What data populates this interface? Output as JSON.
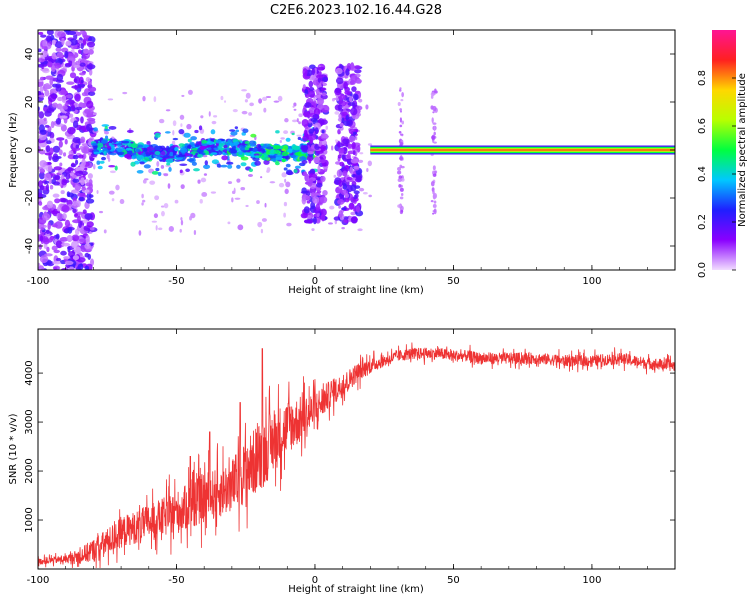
{
  "figure": {
    "title": "C2E6.2023.102.16.44.G28"
  },
  "chart_data": [
    {
      "type": "heatmap",
      "xlabel": "Height of straight line (km)",
      "ylabel": "Frequency (Hz)",
      "xlim": [
        -100,
        130
      ],
      "ylim": [
        -50,
        50
      ],
      "xticks": [
        -100,
        -50,
        0,
        50,
        100
      ],
      "yticks": [
        -40,
        -20,
        0,
        20,
        40
      ],
      "colorbar": {
        "label": "Normalized spectral amplitude",
        "range": [
          0,
          1
        ],
        "ticks": [
          "0.0",
          "0.2",
          "0.4",
          "0.6",
          "0.8"
        ],
        "colors": [
          "#f2ddff",
          "#8a00ff",
          "#1f1fff",
          "#00c8ff",
          "#00ff40",
          "#b8ff00",
          "#ffd700",
          "#ff2020",
          "#ff1493"
        ]
      },
      "features": [
        {
          "name": "noisy broadband band",
          "x_range": [
            -100,
            -80
          ],
          "y_range": [
            -50,
            50
          ]
        },
        {
          "name": "wandering central line",
          "x_range": [
            -80,
            0
          ],
          "y_center": 0,
          "y_spread": 3
        },
        {
          "name": "broadband bursts",
          "x_centers": [
            0,
            12
          ],
          "y_range": [
            -30,
            35
          ]
        },
        {
          "name": "steady carrier line",
          "x_range": [
            20,
            130
          ],
          "y_center": 0,
          "amplitude": 0.85
        }
      ],
      "grid": false
    },
    {
      "type": "line",
      "xlabel": "Height of straight line (km)",
      "ylabel": "SNR (10 * v/v)",
      "xlim": [
        -100,
        130
      ],
      "ylim": [
        0,
        4900
      ],
      "xticks": [
        -100,
        -50,
        0,
        50,
        100
      ],
      "yticks": [
        1000,
        2000,
        3000,
        4000
      ],
      "color": "#ee3333",
      "series": [
        {
          "name": "",
          "x": [
            -100,
            -95,
            -90,
            -85,
            -80,
            -75,
            -70,
            -65,
            -60,
            -55,
            -50,
            -45,
            -40,
            -35,
            -30,
            -25,
            -20,
            -15,
            -10,
            -5,
            0,
            5,
            10,
            15,
            20,
            25,
            30,
            35,
            40,
            45,
            50,
            55,
            60,
            70,
            80,
            90,
            100,
            110,
            120,
            130
          ],
          "y": [
            150,
            180,
            200,
            260,
            380,
            550,
            750,
            850,
            950,
            1050,
            1150,
            1300,
            1450,
            1550,
            1700,
            2000,
            2300,
            2600,
            2900,
            3050,
            3250,
            3550,
            3750,
            4000,
            4150,
            4250,
            4350,
            4400,
            4400,
            4400,
            4350,
            4350,
            4300,
            4300,
            4300,
            4250,
            4250,
            4300,
            4200,
            4150
          ],
          "noise": [
            80,
            90,
            100,
            200,
            300,
            350,
            400,
            420,
            450,
            500,
            550,
            600,
            650,
            650,
            700,
            800,
            900,
            800,
            700,
            600,
            500,
            350,
            300,
            250,
            200,
            150,
            150,
            150,
            150,
            150,
            150,
            150,
            150,
            150,
            150,
            150,
            150,
            150,
            150,
            150
          ],
          "spikes": [
            [
              -19,
              4500
            ],
            [
              -27,
              3400
            ],
            [
              -38,
              2800
            ],
            [
              -45,
              2300
            ]
          ]
        }
      ],
      "grid": false
    }
  ]
}
